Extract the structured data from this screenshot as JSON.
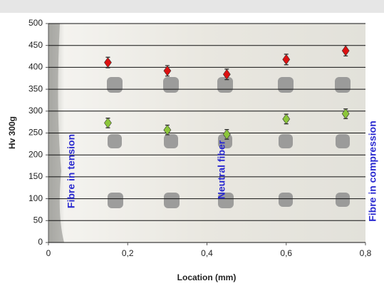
{
  "chart_data": {
    "type": "scatter",
    "x_label": "Location (mm)",
    "y_label": "Hv 300g",
    "xlim": [
      0,
      0.8
    ],
    "xticks": [
      0,
      {
        "value": 0.2,
        "label": "0,2"
      },
      {
        "value": 0.4,
        "label": "0,4"
      },
      {
        "value": 0.6,
        "label": "0,6"
      },
      {
        "value": 0.8,
        "label": "0,8"
      }
    ],
    "ylim": [
      0,
      500
    ],
    "yticks": [
      0,
      50,
      100,
      150,
      200,
      250,
      300,
      350,
      400,
      450,
      500
    ],
    "grid": true,
    "series": [
      {
        "color": "#dd1111",
        "x": [
          0.15,
          0.3,
          0.45,
          0.6,
          0.75
        ],
        "values": [
          411,
          392,
          384,
          418,
          438
        ],
        "errors": [
          12,
          12,
          12,
          12,
          12
        ]
      },
      {
        "color": "#8cc63a",
        "x": [
          0.15,
          0.3,
          0.45,
          0.6,
          0.75
        ],
        "values": [
          273,
          257,
          247,
          282,
          294
        ],
        "errors": [
          11,
          11,
          11,
          11,
          11
        ]
      }
    ],
    "annotations": [
      "Fibre in tension",
      "Neutral fiber",
      "Fibre in compression"
    ]
  }
}
